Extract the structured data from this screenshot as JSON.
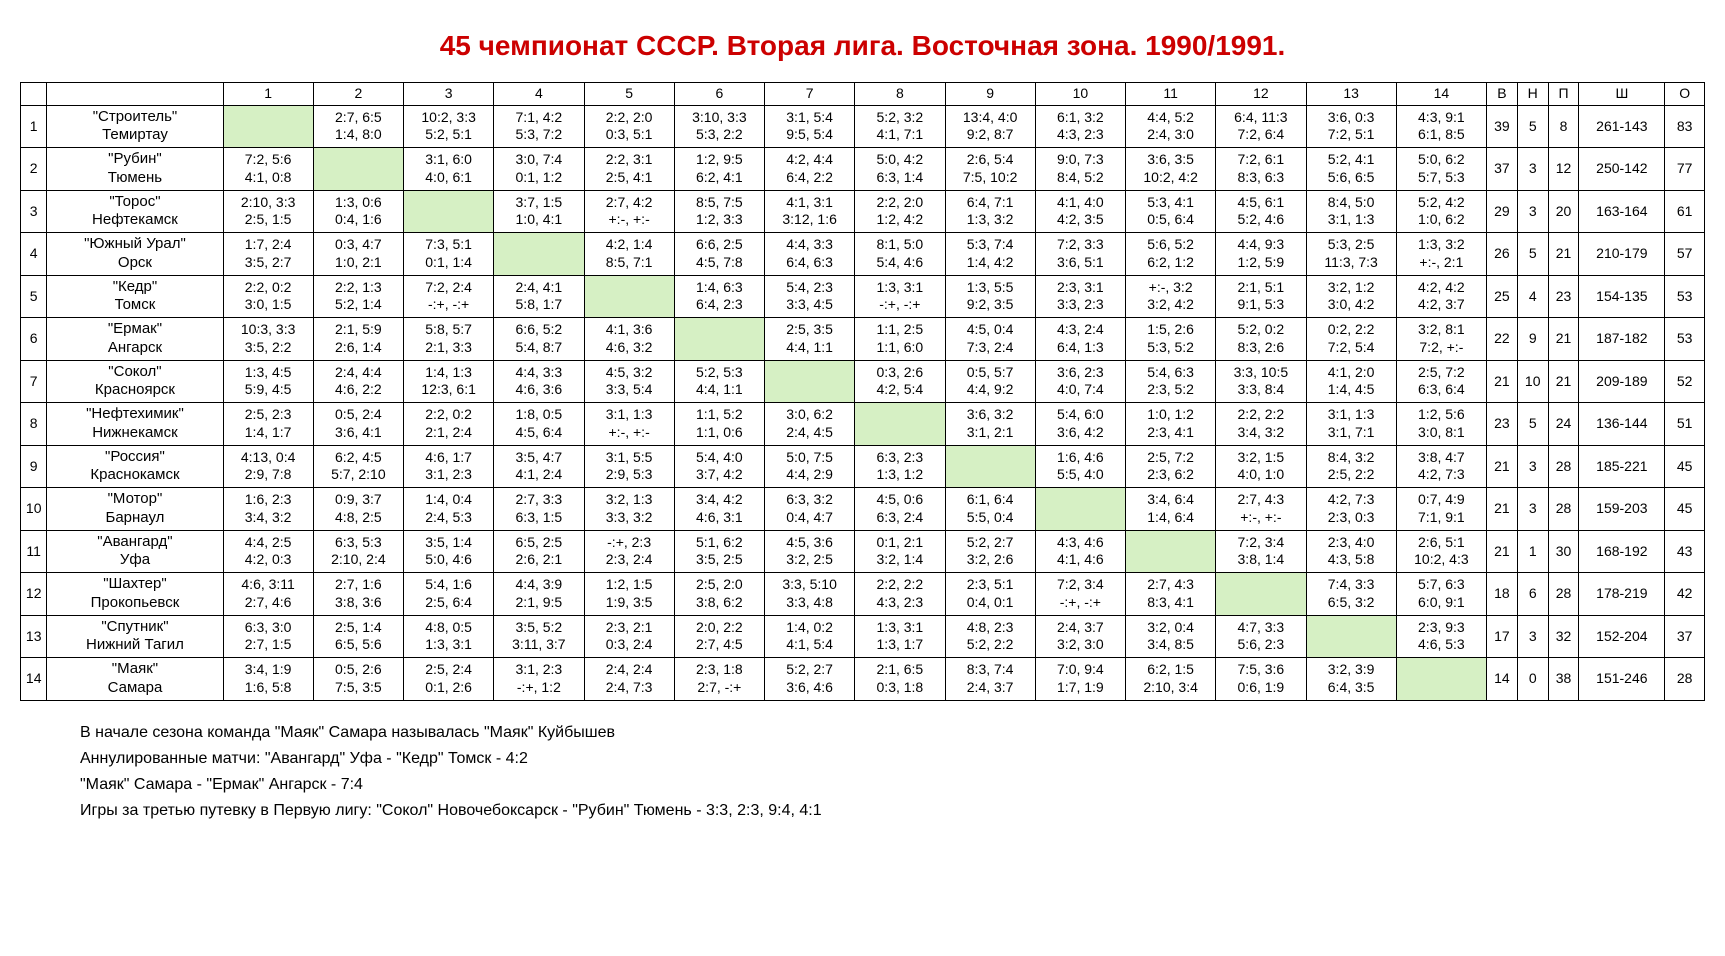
{
  "title": "45 чемпионат СССР. Вторая лига. Восточная зона. 1990/1991.",
  "header": {
    "rank": "",
    "team": "",
    "opps": [
      "1",
      "2",
      "3",
      "4",
      "5",
      "6",
      "7",
      "8",
      "9",
      "10",
      "11",
      "12",
      "13",
      "14"
    ],
    "w": "В",
    "d": "Н",
    "l": "П",
    "goals": "Ш",
    "pts": "О"
  },
  "rows": [
    {
      "rank": "1",
      "team": "\"Строитель\"\nТемиртау",
      "cells": [
        "",
        "2:7, 6:5\n1:4, 8:0",
        "10:2, 3:3\n5:2, 5:1",
        "7:1, 4:2\n5:3, 7:2",
        "2:2, 2:0\n0:3, 5:1",
        "3:10, 3:3\n5:3, 2:2",
        "3:1, 5:4\n9:5, 5:4",
        "5:2, 3:2\n4:1, 7:1",
        "13:4, 4:0\n9:2, 8:7",
        "6:1, 3:2\n4:3, 2:3",
        "4:4, 5:2\n2:4, 3:0",
        "6:4, 11:3\n7:2, 6:4",
        "3:6, 0:3\n7:2, 5:1",
        "4:3, 9:1\n6:1, 8:5"
      ],
      "w": "39",
      "d": "5",
      "l": "8",
      "goals": "261-143",
      "pts": "83"
    },
    {
      "rank": "2",
      "team": "\"Рубин\"\nТюмень",
      "cells": [
        "7:2, 5:6\n4:1, 0:8",
        "",
        "3:1, 6:0\n4:0, 6:1",
        "3:0, 7:4\n0:1, 1:2",
        "2:2, 3:1\n2:5, 4:1",
        "1:2, 9:5\n6:2, 4:1",
        "4:2, 4:4\n6:4, 2:2",
        "5:0, 4:2\n6:3, 1:4",
        "2:6, 5:4\n7:5, 10:2",
        "9:0, 7:3\n8:4, 5:2",
        "3:6, 3:5\n10:2, 4:2",
        "7:2, 6:1\n8:3, 6:3",
        "5:2, 4:1\n5:6, 6:5",
        "5:0, 6:2\n5:7, 5:3"
      ],
      "w": "37",
      "d": "3",
      "l": "12",
      "goals": "250-142",
      "pts": "77"
    },
    {
      "rank": "3",
      "team": "\"Торос\"\nНефтекамск",
      "cells": [
        "2:10, 3:3\n2:5, 1:5",
        "1:3, 0:6\n0:4, 1:6",
        "",
        "3:7, 1:5\n1:0, 4:1",
        "2:7, 4:2\n+:-, +:-",
        "8:5, 7:5\n1:2, 3:3",
        "4:1, 3:1\n3:12, 1:6",
        "2:2, 2:0\n1:2, 4:2",
        "6:4, 7:1\n1:3, 3:2",
        "4:1, 4:0\n4:2, 3:5",
        "5:3, 4:1\n0:5, 6:4",
        "4:5, 6:1\n5:2, 4:6",
        "8:4, 5:0\n3:1, 1:3",
        "5:2, 4:2\n1:0, 6:2"
      ],
      "w": "29",
      "d": "3",
      "l": "20",
      "goals": "163-164",
      "pts": "61"
    },
    {
      "rank": "4",
      "team": "\"Южный Урал\"\nОрск",
      "cells": [
        "1:7, 2:4\n3:5, 2:7",
        "0:3, 4:7\n1:0, 2:1",
        "7:3, 5:1\n0:1, 1:4",
        "",
        "4:2, 1:4\n8:5, 7:1",
        "6:6, 2:5\n4:5, 7:8",
        "4:4, 3:3\n6:4, 6:3",
        "8:1, 5:0\n5:4, 4:6",
        "5:3, 7:4\n1:4, 4:2",
        "7:2, 3:3\n3:6, 5:1",
        "5:6, 5:2\n6:2, 1:2",
        "4:4, 9:3\n1:2, 5:9",
        "5:3, 2:5\n11:3, 7:3",
        "1:3, 3:2\n+:-, 2:1"
      ],
      "w": "26",
      "d": "5",
      "l": "21",
      "goals": "210-179",
      "pts": "57"
    },
    {
      "rank": "5",
      "team": "\"Кедр\"\nТомск",
      "cells": [
        "2:2, 0:2\n3:0, 1:5",
        "2:2, 1:3\n5:2, 1:4",
        "7:2, 2:4\n-:+, -:+",
        "2:4, 4:1\n5:8, 1:7",
        "",
        "1:4, 6:3\n6:4, 2:3",
        "5:4, 2:3\n3:3, 4:5",
        "1:3, 3:1\n-:+, -:+",
        "1:3, 5:5\n9:2, 3:5",
        "2:3, 3:1\n3:3, 2:3",
        "+:-, 3:2\n3:2, 4:2",
        "2:1, 5:1\n9:1, 5:3",
        "3:2, 1:2\n3:0, 4:2",
        "4:2, 4:2\n4:2, 3:7"
      ],
      "w": "25",
      "d": "4",
      "l": "23",
      "goals": "154-135",
      "pts": "53"
    },
    {
      "rank": "6",
      "team": "\"Ермак\"\nАнгарск",
      "cells": [
        "10:3, 3:3\n3:5, 2:2",
        "2:1, 5:9\n2:6, 1:4",
        "5:8, 5:7\n2:1, 3:3",
        "6:6, 5:2\n5:4, 8:7",
        "4:1, 3:6\n4:6, 3:2",
        "",
        "2:5, 3:5\n4:4, 1:1",
        "1:1, 2:5\n1:1, 6:0",
        "4:5, 0:4\n7:3, 2:4",
        "4:3, 2:4\n6:4, 1:3",
        "1:5, 2:6\n5:3, 5:2",
        "5:2, 0:2\n8:3, 2:6",
        "0:2, 2:2\n7:2, 5:4",
        "3:2, 8:1\n7:2, +:-"
      ],
      "w": "22",
      "d": "9",
      "l": "21",
      "goals": "187-182",
      "pts": "53"
    },
    {
      "rank": "7",
      "team": "\"Сокол\"\nКрасноярск",
      "cells": [
        "1:3, 4:5\n5:9, 4:5",
        "2:4, 4:4\n4:6, 2:2",
        "1:4, 1:3\n12:3, 6:1",
        "4:4, 3:3\n4:6, 3:6",
        "4:5, 3:2\n3:3, 5:4",
        "5:2, 5:3\n4:4, 1:1",
        "",
        "0:3, 2:6\n4:2, 5:4",
        "0:5, 5:7\n4:4, 9:2",
        "3:6, 2:3\n4:0, 7:4",
        "5:4, 6:3\n2:3, 5:2",
        "3:3, 10:5\n3:3, 8:4",
        "4:1, 2:0\n1:4, 4:5",
        "2:5, 7:2\n6:3, 6:4"
      ],
      "w": "21",
      "d": "10",
      "l": "21",
      "goals": "209-189",
      "pts": "52"
    },
    {
      "rank": "8",
      "team": "\"Нефтехимик\"\nНижнекамск",
      "cells": [
        "2:5, 2:3\n1:4, 1:7",
        "0:5, 2:4\n3:6, 4:1",
        "2:2, 0:2\n2:1, 2:4",
        "1:8, 0:5\n4:5, 6:4",
        "3:1, 1:3\n+:-, +:-",
        "1:1, 5:2\n1:1, 0:6",
        "3:0, 6:2\n2:4, 4:5",
        "",
        "3:6, 3:2\n3:1, 2:1",
        "5:4, 6:0\n3:6, 4:2",
        "1:0, 1:2\n2:3, 4:1",
        "2:2, 2:2\n3:4, 3:2",
        "3:1, 1:3\n3:1, 7:1",
        "1:2, 5:6\n3:0, 8:1"
      ],
      "w": "23",
      "d": "5",
      "l": "24",
      "goals": "136-144",
      "pts": "51"
    },
    {
      "rank": "9",
      "team": "\"Россия\"\nКраснокамск",
      "cells": [
        "4:13, 0:4\n2:9, 7:8",
        "6:2, 4:5\n5:7, 2:10",
        "4:6, 1:7\n3:1, 2:3",
        "3:5, 4:7\n4:1, 2:4",
        "3:1, 5:5\n2:9, 5:3",
        "5:4, 4:0\n3:7, 4:2",
        "5:0, 7:5\n4:4, 2:9",
        "6:3, 2:3\n1:3, 1:2",
        "",
        "1:6, 4:6\n5:5, 4:0",
        "2:5, 7:2\n2:3, 6:2",
        "3:2, 1:5\n4:0, 1:0",
        "8:4, 3:2\n2:5, 2:2",
        "3:8, 4:7\n4:2, 7:3"
      ],
      "w": "21",
      "d": "3",
      "l": "28",
      "goals": "185-221",
      "pts": "45"
    },
    {
      "rank": "10",
      "team": "\"Мотор\"\nБарнаул",
      "cells": [
        "1:6, 2:3\n3:4, 3:2",
        "0:9, 3:7\n4:8, 2:5",
        "1:4, 0:4\n2:4, 5:3",
        "2:7, 3:3\n6:3, 1:5",
        "3:2, 1:3\n3:3, 3:2",
        "3:4, 4:2\n4:6, 3:1",
        "6:3, 3:2\n0:4, 4:7",
        "4:5, 0:6\n6:3, 2:4",
        "6:1, 6:4\n5:5, 0:4",
        "",
        "3:4, 6:4\n1:4, 6:4",
        "2:7, 4:3\n+:-, +:-",
        "4:2, 7:3\n2:3, 0:3",
        "0:7, 4:9\n7:1, 9:1"
      ],
      "w": "21",
      "d": "3",
      "l": "28",
      "goals": "159-203",
      "pts": "45"
    },
    {
      "rank": "11",
      "team": "\"Авангард\"\nУфа",
      "cells": [
        "4:4, 2:5\n4:2, 0:3",
        "6:3, 5:3\n2:10, 2:4",
        "3:5, 1:4\n5:0, 4:6",
        "6:5, 2:5\n2:6, 2:1",
        "-:+, 2:3\n2:3, 2:4",
        "5:1, 6:2\n3:5, 2:5",
        "4:5, 3:6\n3:2, 2:5",
        "0:1, 2:1\n3:2, 1:4",
        "5:2, 2:7\n3:2, 2:6",
        "4:3, 4:6\n4:1, 4:6",
        "",
        "7:2, 3:4\n3:8, 1:4",
        "2:3, 4:0\n4:3, 5:8",
        "2:6, 5:1\n10:2, 4:3"
      ],
      "w": "21",
      "d": "1",
      "l": "30",
      "goals": "168-192",
      "pts": "43"
    },
    {
      "rank": "12",
      "team": "\"Шахтер\"\nПрокопьевск",
      "cells": [
        "4:6, 3:11\n2:7, 4:6",
        "2:7, 1:6\n3:8, 3:6",
        "5:4, 1:6\n2:5, 6:4",
        "4:4, 3:9\n2:1, 9:5",
        "1:2, 1:5\n1:9, 3:5",
        "2:5, 2:0\n3:8, 6:2",
        "3:3, 5:10\n3:3, 4:8",
        "2:2, 2:2\n4:3, 2:3",
        "2:3, 5:1\n0:4, 0:1",
        "7:2, 3:4\n-:+, -:+",
        "2:7, 4:3\n8:3, 4:1",
        "",
        "7:4, 3:3\n6:5, 3:2",
        "5:7, 6:3\n6:0, 9:1"
      ],
      "w": "18",
      "d": "6",
      "l": "28",
      "goals": "178-219",
      "pts": "42"
    },
    {
      "rank": "13",
      "team": "\"Спутник\"\nНижний Тагил",
      "cells": [
        "6:3, 3:0\n2:7, 1:5",
        "2:5, 1:4\n6:5, 5:6",
        "4:8, 0:5\n1:3, 3:1",
        "3:5, 5:2\n3:11, 3:7",
        "2:3, 2:1\n0:3, 2:4",
        "2:0, 2:2\n2:7, 4:5",
        "1:4, 0:2\n4:1, 5:4",
        "1:3, 3:1\n1:3, 1:7",
        "4:8, 2:3\n5:2, 2:2",
        "2:4, 3:7\n3:2, 3:0",
        "3:2, 0:4\n3:4, 8:5",
        "4:7, 3:3\n5:6, 2:3",
        "",
        "2:3, 9:3\n4:6, 5:3"
      ],
      "w": "17",
      "d": "3",
      "l": "32",
      "goals": "152-204",
      "pts": "37"
    },
    {
      "rank": "14",
      "team": "\"Маяк\"\nСамара",
      "cells": [
        "3:4, 1:9\n1:6, 5:8",
        "0:5, 2:6\n7:5, 3:5",
        "2:5, 2:4\n0:1, 2:6",
        "3:1, 2:3\n-:+, 1:2",
        "2:4, 2:4\n2:4, 7:3",
        "2:3, 1:8\n2:7, -:+",
        "5:2, 2:7\n3:6, 4:6",
        "2:1, 6:5\n0:3, 1:8",
        "8:3, 7:4\n2:4, 3:7",
        "7:0, 9:4\n1:7, 1:9",
        "6:2, 1:5\n2:10, 3:4",
        "7:5, 3:6\n0:6, 1:9",
        "3:2, 3:9\n6:4, 3:5",
        ""
      ],
      "w": "14",
      "d": "0",
      "l": "38",
      "goals": "151-246",
      "pts": "28"
    }
  ],
  "notes": {
    "l1": "В начале сезона команда \"Маяк\" Самара называлась \"Маяк\" Куйбышев",
    "l2": "Аннулированные матчи: \"Авангард\" Уфа - \"Кедр\" Томск - 4:2",
    "l3": "\"Маяк\" Самара - \"Ермак\" Ангарск - 7:4",
    "playoff": "Игры за третью путевку в Первую лигу:  \"Сокол\" Новочебоксарск - \"Рубин\" Тюмень - 3:3, 2:3, 9:4, 4:1"
  }
}
